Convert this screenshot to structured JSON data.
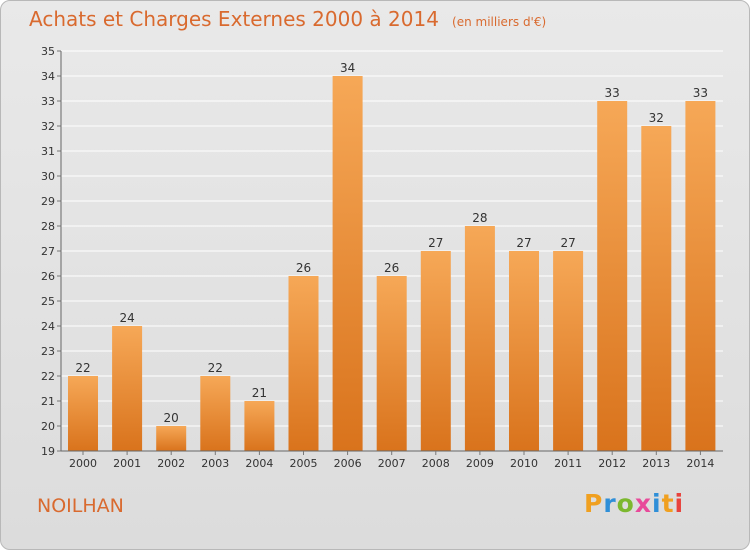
{
  "header": {
    "title": "Achats et Charges Externes 2000 à 2014",
    "unit": "(en milliers d'€)"
  },
  "footer": {
    "commune": "NOILHAN",
    "brand": "Proxiti"
  },
  "colors": {
    "bar_top": "#f6a857",
    "bar_bottom": "#d9731c",
    "title": "#d96a2f"
  },
  "chart_data": {
    "type": "bar",
    "title": "Achats et Charges Externes 2000 à 2014",
    "ylabel": "en milliers d'€",
    "xlabel": "",
    "categories": [
      "2000",
      "2001",
      "2002",
      "2003",
      "2004",
      "2005",
      "2006",
      "2007",
      "2008",
      "2009",
      "2010",
      "2011",
      "2012",
      "2013",
      "2014"
    ],
    "values": [
      22,
      24,
      20,
      22,
      21,
      26,
      34,
      26,
      27,
      28,
      27,
      27,
      33,
      32,
      33
    ],
    "ylim": [
      19,
      35
    ],
    "yticks": [
      19,
      20,
      21,
      22,
      23,
      24,
      25,
      26,
      27,
      28,
      29,
      30,
      31,
      32,
      33,
      34,
      35
    ],
    "grid": true
  }
}
